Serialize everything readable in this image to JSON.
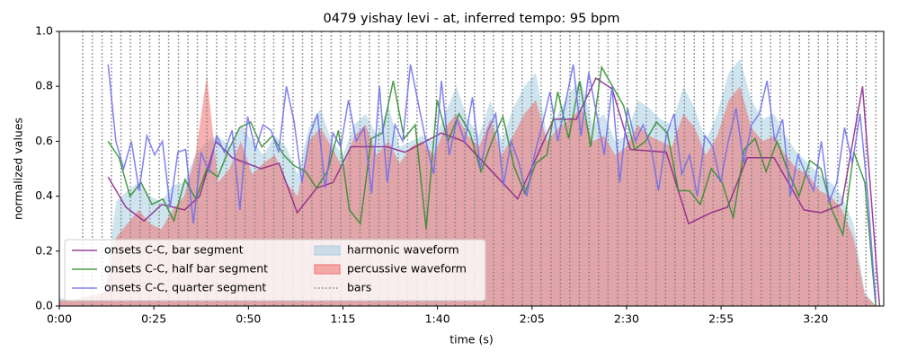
{
  "chart_data": {
    "type": "line",
    "title": "0479 yishay levi - at, inferred tempo: 95 bpm",
    "x_label": "time (s)",
    "y_label": "normalized values",
    "xlim": [
      0,
      218
    ],
    "ylim": [
      0,
      1
    ],
    "xticks": [
      {
        "value": 0,
        "label": "0:00"
      },
      {
        "value": 25,
        "label": "0:25"
      },
      {
        "value": 50,
        "label": "0:50"
      },
      {
        "value": 75,
        "label": "1:15"
      },
      {
        "value": 100,
        "label": "1:40"
      },
      {
        "value": 125,
        "label": "2:05"
      },
      {
        "value": 150,
        "label": "2:30"
      },
      {
        "value": 175,
        "label": "2:55"
      },
      {
        "value": 200,
        "label": "3:20"
      }
    ],
    "yticks": [
      {
        "value": 0,
        "label": "0.0"
      },
      0.2,
      0.4,
      0.6,
      0.8,
      {
        "value": 1,
        "label": "1.0"
      }
    ],
    "legend": "lower left",
    "series": [
      {
        "name": "onsets C-C, bar segment",
        "style": "line",
        "color": "#882288",
        "x": [
          12.9,
          17.6,
          22.4,
          27.1,
          33.1,
          37.1,
          41.4,
          45.7,
          53.3,
          58.1,
          62.9,
          68.1,
          72.4,
          77.1,
          86.7,
          91.4,
          101.0,
          106.9,
          111.7,
          121.2,
          130.7,
          136.7,
          141.9,
          146.2,
          151.0,
          160.5,
          166.4,
          172.4,
          176.7,
          181.9,
          189.0,
          196.9,
          201.4,
          206.9,
          212.4,
          216.9
        ],
        "values": [
          0.47,
          0.36,
          0.31,
          0.37,
          0.35,
          0.4,
          0.6,
          0.54,
          0.5,
          0.52,
          0.34,
          0.43,
          0.45,
          0.58,
          0.58,
          0.56,
          0.63,
          0.6,
          0.53,
          0.39,
          0.68,
          0.68,
          0.83,
          0.79,
          0.57,
          0.56,
          0.3,
          0.34,
          0.36,
          0.54,
          0.54,
          0.35,
          0.34,
          0.37,
          0.8,
          0.0
        ]
      },
      {
        "name": "onsets C-C, half bar segment",
        "style": "line",
        "color": "#2a8c2a",
        "x": [
          12.9,
          15.8,
          18.7,
          21.6,
          24.5,
          27.4,
          30.3,
          33.2,
          36.1,
          39.0,
          41.9,
          44.8,
          47.7,
          50.6,
          53.5,
          56.4,
          59.3,
          62.2,
          65.1,
          68.0,
          70.9,
          73.8,
          76.7,
          79.6,
          82.5,
          85.4,
          88.3,
          91.2,
          94.1,
          97.0,
          99.9,
          102.8,
          105.7,
          108.6,
          111.5,
          114.4,
          117.3,
          120.2,
          123.1,
          126.0,
          128.9,
          131.8,
          134.7,
          137.6,
          140.5,
          143.4,
          146.3,
          149.2,
          152.1,
          155.0,
          157.9,
          160.8,
          163.7,
          166.6,
          169.5,
          172.4,
          175.3,
          178.2,
          181.1,
          184.0,
          186.9,
          189.8,
          192.7,
          195.6,
          198.5,
          201.4,
          204.3,
          207.2,
          210.1,
          213.0,
          215.9
        ],
        "values": [
          0.6,
          0.54,
          0.4,
          0.45,
          0.37,
          0.39,
          0.31,
          0.46,
          0.39,
          0.5,
          0.47,
          0.57,
          0.65,
          0.67,
          0.58,
          0.62,
          0.55,
          0.51,
          0.49,
          0.43,
          0.49,
          0.64,
          0.35,
          0.3,
          0.61,
          0.63,
          0.82,
          0.61,
          0.66,
          0.28,
          0.75,
          0.6,
          0.7,
          0.63,
          0.49,
          0.6,
          0.69,
          0.51,
          0.41,
          0.52,
          0.55,
          0.78,
          0.61,
          0.82,
          0.58,
          0.87,
          0.8,
          0.73,
          0.57,
          0.6,
          0.67,
          0.63,
          0.42,
          0.42,
          0.37,
          0.5,
          0.45,
          0.32,
          0.57,
          0.61,
          0.49,
          0.6,
          0.49,
          0.4,
          0.53,
          0.5,
          0.35,
          0.26,
          0.56,
          0.45,
          0.0
        ]
      },
      {
        "name": "onsets C-C, quarter segment",
        "style": "line",
        "color": "#6b6bee",
        "x": [
          12.9,
          14.95,
          17.0,
          19.05,
          21.1,
          23.15,
          25.2,
          27.25,
          29.3,
          31.35,
          33.4,
          35.45,
          37.5,
          39.55,
          41.6,
          43.65,
          45.7,
          47.75,
          49.8,
          51.85,
          53.9,
          55.95,
          58.0,
          60.05,
          62.1,
          64.15,
          66.2,
          68.25,
          70.3,
          72.35,
          74.4,
          76.45,
          78.5,
          80.55,
          82.6,
          84.65,
          86.7,
          88.75,
          90.8,
          92.85,
          94.9,
          96.95,
          99.0,
          101.05,
          103.1,
          105.15,
          107.2,
          109.25,
          111.3,
          113.35,
          115.4,
          117.45,
          119.5,
          121.55,
          123.6,
          125.65,
          127.7,
          129.75,
          131.8,
          133.85,
          135.9,
          137.95,
          140.0,
          142.05,
          144.1,
          146.15,
          148.2,
          150.25,
          152.3,
          154.35,
          156.4,
          158.45,
          160.5,
          162.55,
          164.6,
          166.65,
          168.7,
          170.75,
          172.8,
          174.85,
          176.9,
          178.95,
          181.0,
          183.05,
          185.1,
          187.15,
          189.2,
          191.25,
          193.3,
          195.35,
          197.4,
          199.45,
          201.5,
          203.55,
          205.6,
          207.65,
          209.7,
          211.75,
          213.8,
          215.85
        ],
        "values": [
          0.88,
          0.6,
          0.5,
          0.6,
          0.42,
          0.62,
          0.55,
          0.6,
          0.36,
          0.56,
          0.57,
          0.3,
          0.56,
          0.49,
          0.62,
          0.56,
          0.64,
          0.35,
          0.69,
          0.57,
          0.66,
          0.64,
          0.56,
          0.8,
          0.67,
          0.45,
          0.62,
          0.7,
          0.43,
          0.63,
          0.58,
          0.75,
          0.6,
          0.65,
          0.41,
          0.8,
          0.45,
          0.66,
          0.6,
          0.88,
          0.74,
          0.6,
          0.48,
          0.82,
          0.55,
          0.68,
          0.6,
          0.76,
          0.5,
          0.64,
          0.7,
          0.44,
          0.6,
          0.52,
          0.4,
          0.55,
          0.66,
          0.78,
          0.6,
          0.74,
          0.88,
          0.62,
          0.85,
          0.7,
          0.55,
          0.8,
          0.45,
          0.72,
          0.6,
          0.66,
          0.58,
          0.42,
          0.62,
          0.7,
          0.48,
          0.55,
          0.4,
          0.62,
          0.58,
          0.45,
          0.6,
          0.72,
          0.52,
          0.66,
          0.7,
          0.82,
          0.6,
          0.68,
          0.4,
          0.55,
          0.48,
          0.42,
          0.6,
          0.38,
          0.45,
          0.65,
          0.52,
          0.7,
          0.4,
          0.02
        ]
      },
      {
        "name": "harmonic waveform",
        "style": "area",
        "color": "#a6cde2",
        "x": [
          0,
          3,
          6,
          9,
          12,
          15,
          18,
          21,
          24,
          27,
          30,
          33,
          36,
          39,
          42,
          45,
          48,
          51,
          54,
          57,
          60,
          63,
          66,
          69,
          72,
          75,
          78,
          81,
          84,
          87,
          90,
          93,
          96,
          99,
          102,
          105,
          108,
          111,
          114,
          117,
          120,
          123,
          126,
          129,
          132,
          135,
          138,
          141,
          144,
          147,
          150,
          153,
          156,
          159,
          162,
          165,
          168,
          171,
          174,
          177,
          180,
          183,
          186,
          189,
          192,
          195,
          198,
          201,
          204,
          207,
          210,
          213,
          216
        ],
        "values": [
          0.03,
          0.02,
          0.02,
          0.03,
          0.05,
          0.38,
          0.42,
          0.45,
          0.4,
          0.38,
          0.44,
          0.45,
          0.55,
          0.6,
          0.62,
          0.58,
          0.66,
          0.6,
          0.55,
          0.62,
          0.58,
          0.48,
          0.65,
          0.72,
          0.6,
          0.55,
          0.66,
          0.7,
          0.62,
          0.73,
          0.58,
          0.6,
          0.62,
          0.6,
          0.7,
          0.8,
          0.68,
          0.62,
          0.75,
          0.6,
          0.72,
          0.8,
          0.85,
          0.62,
          0.7,
          0.78,
          0.82,
          0.66,
          0.7,
          0.6,
          0.62,
          0.75,
          0.72,
          0.68,
          0.66,
          0.8,
          0.72,
          0.6,
          0.7,
          0.85,
          0.9,
          0.75,
          0.68,
          0.7,
          0.62,
          0.56,
          0.52,
          0.48,
          0.45,
          0.4,
          0.3,
          0.05,
          0
        ]
      },
      {
        "name": "percussive waveform",
        "style": "area",
        "color": "#f07070",
        "x": [
          0,
          3,
          6,
          9,
          12,
          15,
          18,
          21,
          24,
          27,
          30,
          33,
          36,
          39,
          42,
          45,
          48,
          51,
          54,
          57,
          60,
          63,
          66,
          69,
          72,
          75,
          78,
          81,
          84,
          87,
          90,
          93,
          96,
          99,
          102,
          105,
          108,
          111,
          114,
          117,
          120,
          123,
          126,
          129,
          132,
          135,
          138,
          141,
          144,
          147,
          150,
          153,
          156,
          159,
          162,
          165,
          168,
          171,
          174,
          177,
          180,
          183,
          186,
          189,
          192,
          195,
          198,
          201,
          204,
          207,
          210,
          213,
          216
        ],
        "values": [
          0.02,
          0.02,
          0.03,
          0.04,
          0.05,
          0.25,
          0.3,
          0.35,
          0.3,
          0.28,
          0.35,
          0.4,
          0.55,
          0.84,
          0.45,
          0.5,
          0.6,
          0.48,
          0.52,
          0.55,
          0.45,
          0.4,
          0.6,
          0.65,
          0.58,
          0.5,
          0.62,
          0.66,
          0.55,
          0.6,
          0.52,
          0.58,
          0.6,
          0.55,
          0.65,
          0.7,
          0.62,
          0.58,
          0.68,
          0.55,
          0.62,
          0.7,
          0.75,
          0.6,
          0.65,
          0.68,
          0.72,
          0.6,
          0.62,
          0.55,
          0.58,
          0.66,
          0.62,
          0.6,
          0.58,
          0.7,
          0.65,
          0.55,
          0.62,
          0.75,
          0.8,
          0.65,
          0.6,
          0.62,
          0.55,
          0.5,
          0.48,
          0.42,
          0.4,
          0.35,
          0.25,
          0.04,
          0
        ]
      },
      {
        "name": "bars",
        "style": "vlines",
        "color": "#808080",
        "x": [
          6.2,
          8.7,
          11.3,
          13.8,
          16.3,
          18.8,
          21.4,
          23.9,
          26.4,
          28.9,
          31.5,
          34.0,
          36.5,
          39.0,
          41.6,
          44.1,
          46.6,
          49.1,
          51.7,
          54.2,
          56.7,
          59.2,
          61.8,
          64.3,
          66.8,
          69.3,
          71.9,
          74.4,
          76.9,
          79.5,
          82.0,
          84.5,
          87.0,
          89.6,
          92.1,
          94.6,
          97.1,
          99.7,
          102.2,
          104.7,
          107.2,
          109.8,
          112.3,
          114.8,
          117.3,
          119.9,
          122.4,
          124.9,
          127.4,
          130.0,
          132.5,
          135.0,
          137.5,
          140.1,
          142.6,
          145.1,
          147.7,
          150.2,
          152.7,
          155.2,
          157.8,
          160.3,
          162.8,
          165.3,
          167.9,
          170.4,
          172.9,
          175.4,
          178.0,
          180.5,
          183.0,
          185.6,
          188.1,
          190.6,
          193.1,
          195.7,
          198.2,
          200.7,
          203.2,
          205.8,
          208.3,
          210.8,
          213.3,
          215.9
        ]
      }
    ]
  }
}
